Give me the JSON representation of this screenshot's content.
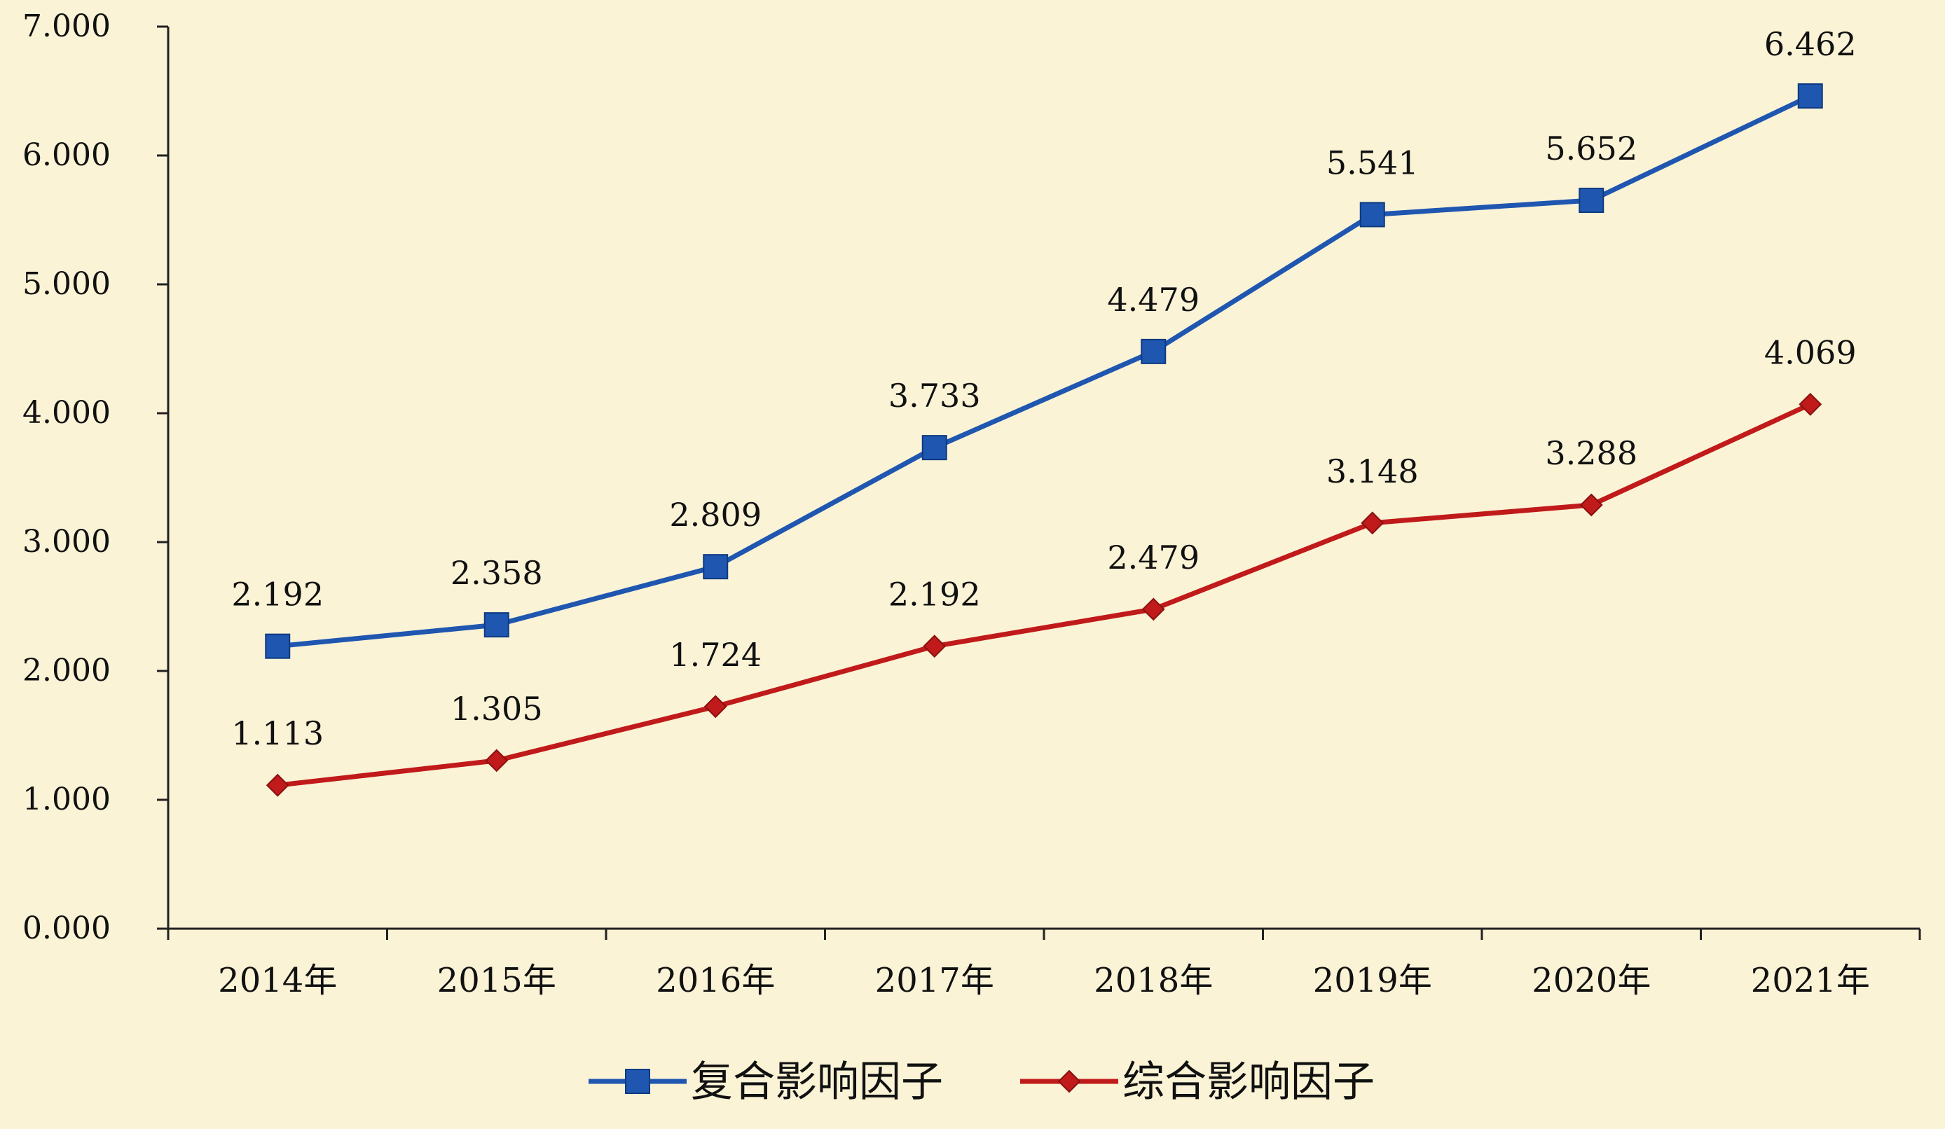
{
  "chart_data": {
    "type": "line",
    "title": "",
    "xlabel": "",
    "ylabel": "",
    "categories": [
      "2014年",
      "2015年",
      "2016年",
      "2017年",
      "2018年",
      "2019年",
      "2020年",
      "2021年"
    ],
    "ylim": [
      0,
      7
    ],
    "yticks": [
      "0.000",
      "1.000",
      "2.000",
      "3.000",
      "4.000",
      "5.000",
      "6.000",
      "7.000"
    ],
    "grid": false,
    "legend_position": "bottom",
    "series": [
      {
        "name": "复合影响因子",
        "marker": "square",
        "color": "#1f56b0",
        "values": [
          2.192,
          2.358,
          2.809,
          3.733,
          4.479,
          5.541,
          5.652,
          6.462
        ],
        "labels": [
          "2.192",
          "2.358",
          "2.809",
          "3.733",
          "4.479",
          "5.541",
          "5.652",
          "6.462"
        ]
      },
      {
        "name": "综合影响因子",
        "marker": "diamond",
        "color": "#c01a1a",
        "values": [
          1.113,
          1.305,
          1.724,
          2.192,
          2.479,
          3.148,
          3.288,
          4.069
        ],
        "labels": [
          "1.113",
          "1.305",
          "1.724",
          "2.192",
          "2.479",
          "3.148",
          "3.288",
          "4.069"
        ]
      }
    ]
  }
}
